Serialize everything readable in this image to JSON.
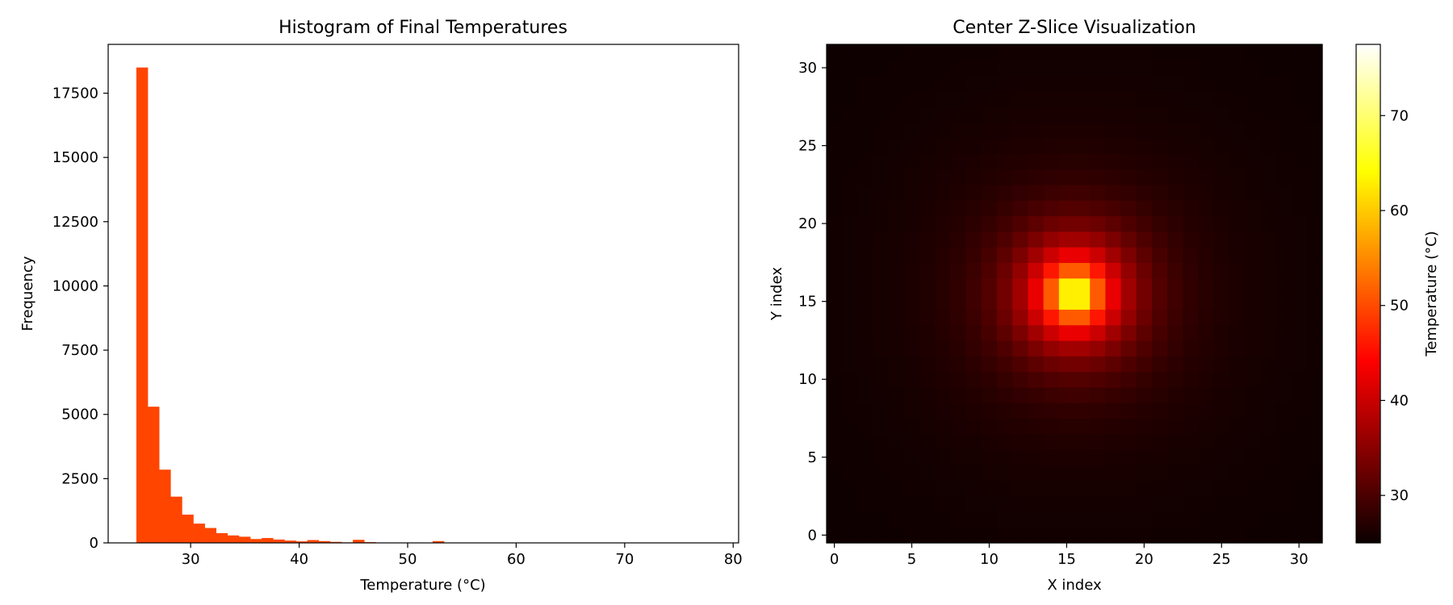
{
  "chart_data": [
    {
      "type": "bar",
      "subtype": "histogram",
      "title": "Histogram of Final Temperatures",
      "xlabel": "Temperature (°C)",
      "ylabel": "Frequency",
      "xlim": [
        22.4,
        80.5
      ],
      "ylim": [
        0,
        19400
      ],
      "x_ticks": [
        30,
        40,
        50,
        60,
        70,
        80
      ],
      "y_ticks": [
        0,
        2500,
        5000,
        7500,
        10000,
        12500,
        15000,
        17500
      ],
      "bin_start": 25.0,
      "bin_width": 1.05,
      "values": [
        18500,
        5300,
        2850,
        1800,
        1100,
        750,
        580,
        380,
        290,
        240,
        150,
        190,
        130,
        90,
        60,
        110,
        70,
        40,
        20,
        120,
        30,
        10,
        10,
        10,
        10,
        5,
        70,
        5,
        5,
        5,
        5,
        5,
        5,
        5,
        5,
        5,
        5,
        5,
        5,
        5,
        10,
        5,
        5,
        5,
        5,
        5,
        5,
        5,
        5,
        5
      ],
      "color": "#ff4500",
      "grid": false,
      "legend": "none"
    },
    {
      "type": "heatmap",
      "title": "Center Z-Slice Visualization",
      "xlabel": "X index",
      "ylabel": "Y index",
      "grid_size": [
        32,
        32
      ],
      "x_ticks": [
        0,
        5,
        10,
        15,
        20,
        25,
        30
      ],
      "y_ticks": [
        0,
        5,
        10,
        15,
        20,
        25,
        30
      ],
      "center": [
        15.5,
        15.5
      ],
      "value_min": 25,
      "value_peak": 77.5,
      "colormap": "hot",
      "colorbar": {
        "label": "Temperature (°C)",
        "ticks": [
          30,
          40,
          50,
          60,
          70
        ],
        "range": [
          25,
          77.5
        ]
      },
      "grid": false
    }
  ]
}
